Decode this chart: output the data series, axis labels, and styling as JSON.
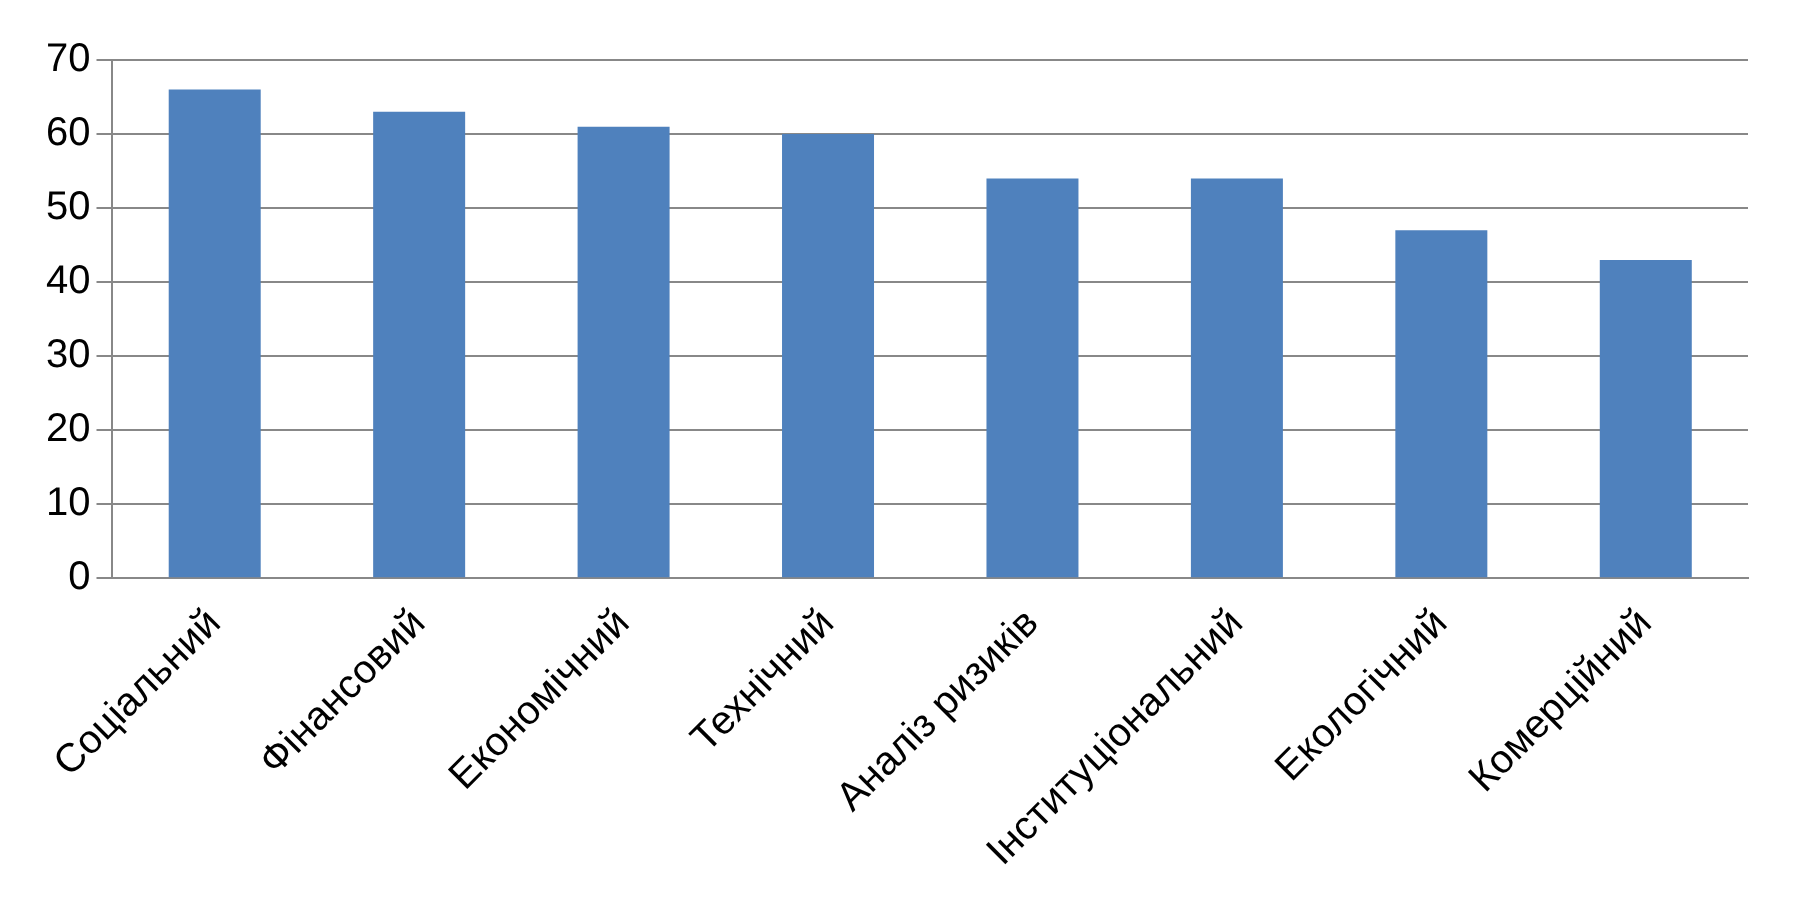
{
  "chart_data": {
    "type": "bar",
    "categories": [
      "Соціальний",
      "Фінансовий",
      "Економічний",
      "Технічний",
      "Аналіз ризиків",
      "Інституціональний",
      "Екологічний",
      "Комерційний"
    ],
    "values": [
      66,
      63,
      61,
      60,
      54,
      54,
      47,
      43
    ],
    "color": "#4f81bd",
    "ylim": [
      0,
      70
    ],
    "yticks": [
      0,
      10,
      20,
      30,
      40,
      50,
      60,
      70
    ],
    "grid": "y"
  }
}
